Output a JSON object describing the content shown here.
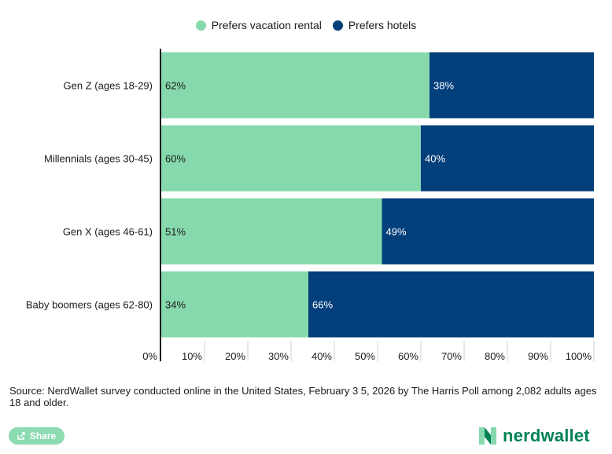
{
  "legend": [
    {
      "label": "Prefers vacation rental",
      "color": "#86d9ad"
    },
    {
      "label": "Prefers hotels",
      "color": "#033f7b"
    }
  ],
  "chart_data": {
    "type": "bar",
    "orientation": "horizontal",
    "stacked": true,
    "categories": [
      "Gen Z (ages 18-29)",
      "Millennials (ages 30-45)",
      "Gen X (ages 46-61)",
      "Baby boomers (ages 62-80)"
    ],
    "series": [
      {
        "name": "Prefers vacation rental",
        "values": [
          62,
          60,
          51,
          34
        ],
        "labels": [
          "62%",
          "60%",
          "51%",
          "34%"
        ],
        "color": "#86d9ad"
      },
      {
        "name": "Prefers hotels",
        "values": [
          38,
          40,
          49,
          66
        ],
        "labels": [
          "38%",
          "40%",
          "49%",
          "66%"
        ],
        "color": "#033f7b"
      }
    ],
    "xlim": [
      0,
      100
    ],
    "xticks": [
      0,
      10,
      20,
      30,
      40,
      50,
      60,
      70,
      80,
      90,
      100
    ],
    "xtick_labels": [
      "0%",
      "10%",
      "20%",
      "30%",
      "40%",
      "50%",
      "60%",
      "70%",
      "80%",
      "90%",
      "100%"
    ],
    "legend_position": "top-center",
    "grid": false
  },
  "footer": {
    "source": "Source: NerdWallet survey conducted online in the United States, February 3 5, 2026 by The Harris Poll among 2,082 adults ages 18 and older.",
    "share_label": "Share",
    "logo_text": "nerdwallet"
  }
}
